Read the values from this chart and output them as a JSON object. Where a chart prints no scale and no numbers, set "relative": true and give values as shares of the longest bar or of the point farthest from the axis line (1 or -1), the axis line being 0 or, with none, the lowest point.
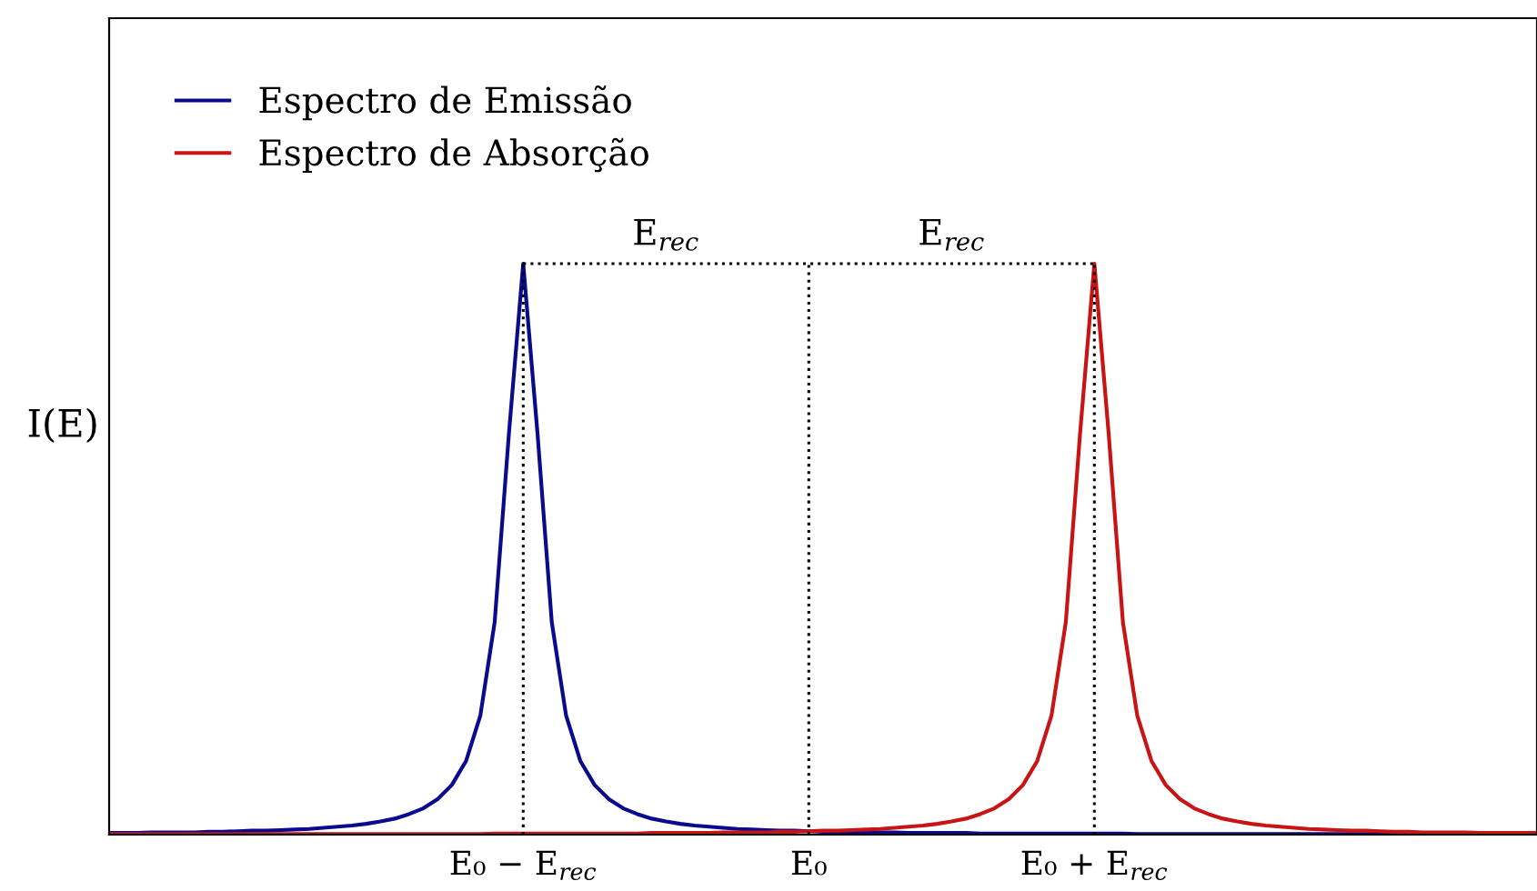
{
  "chart_data": {
    "type": "line",
    "relative": true,
    "ylabel": "I(E)",
    "categories": [
      null,
      null,
      null,
      null,
      null,
      null,
      null,
      null,
      null,
      null,
      null,
      null,
      null,
      null,
      null,
      null,
      null,
      null,
      null,
      null,
      null,
      null,
      null,
      null,
      null,
      null,
      null,
      null,
      null,
      "E₀ − E$_{rec}$",
      null,
      null,
      null,
      null,
      null,
      null,
      null,
      null,
      null,
      null,
      null,
      null,
      null,
      null,
      null,
      null,
      null,
      null,
      null,
      "E₀",
      null,
      null,
      null,
      null,
      null,
      null,
      null,
      null,
      null,
      null,
      null,
      null,
      null,
      null,
      null,
      null,
      null,
      null,
      null,
      "E₀ + E$_{rec}$",
      null,
      null,
      null,
      null,
      null,
      null,
      null,
      null,
      null,
      null,
      null,
      null,
      null,
      null,
      null,
      null,
      null,
      null,
      null,
      null,
      null,
      null,
      null,
      null,
      null,
      null,
      null,
      null,
      null,
      null,
      null
    ],
    "series": [
      {
        "name": "Espectro de Emissão",
        "color": "#0a0a8c",
        "values": [
          0.003,
          0.003,
          0.003,
          0.004,
          0.004,
          0.004,
          0.004,
          0.005,
          0.005,
          0.006,
          0.007,
          0.007,
          0.008,
          0.009,
          0.01,
          0.012,
          0.014,
          0.016,
          0.019,
          0.023,
          0.028,
          0.036,
          0.046,
          0.062,
          0.087,
          0.129,
          0.209,
          0.372,
          0.703,
          1,
          0.703,
          0.372,
          0.209,
          0.129,
          0.087,
          0.062,
          0.046,
          0.036,
          0.028,
          0.023,
          0.019,
          0.016,
          0.014,
          0.012,
          0.01,
          0.009,
          0.008,
          0.007,
          0.007,
          0.006,
          0.005,
          0.005,
          0.004,
          0.004,
          0.004,
          0.004,
          0.003,
          0.003,
          0.003,
          0.003,
          0.003,
          0.002,
          0.002,
          0.002,
          0.002,
          0.002,
          0.002,
          0.002,
          0.002,
          0.002,
          0.002,
          0.002,
          0.001,
          0.001,
          0.001,
          0.001,
          0.001,
          0.001,
          0.001,
          0.001,
          0.001,
          0.001,
          0.001,
          0.001,
          0.001,
          0.001,
          0.001,
          0.001,
          0.001,
          0.001,
          0.001,
          null,
          null,
          null,
          null,
          null,
          null,
          null,
          null,
          null,
          null
        ]
      },
      {
        "name": "Espectro de Absorção",
        "color": "#c81414",
        "values": [
          0.001,
          0.001,
          0.001,
          0.001,
          0.001,
          0.001,
          0.001,
          0.001,
          0.001,
          0.001,
          0.001,
          0.001,
          0.001,
          0.001,
          0.001,
          0.001,
          0.001,
          0.001,
          0.001,
          0.001,
          0.001,
          0.001,
          0.001,
          0.001,
          0.001,
          0.001,
          0.001,
          0.002,
          0.002,
          0.002,
          0.002,
          0.002,
          0.002,
          0.002,
          0.002,
          0.002,
          0.002,
          0.002,
          0.003,
          0.003,
          0.003,
          0.003,
          0.003,
          0.004,
          0.004,
          0.004,
          0.004,
          0.005,
          0.005,
          0.006,
          0.007,
          0.007,
          0.008,
          0.009,
          0.01,
          0.012,
          0.014,
          0.016,
          0.019,
          0.023,
          0.028,
          0.036,
          0.046,
          0.062,
          0.087,
          0.129,
          0.209,
          0.372,
          0.703,
          1,
          0.703,
          0.372,
          0.209,
          0.129,
          0.087,
          0.062,
          0.046,
          0.036,
          0.028,
          0.023,
          0.019,
          0.016,
          0.014,
          0.012,
          0.01,
          0.009,
          0.008,
          0.007,
          0.007,
          0.006,
          0.005,
          0.005,
          0.004,
          0.004,
          0.004,
          0.004,
          0.003,
          0.003,
          0.003,
          0.003,
          0.003
        ]
      }
    ],
    "ref_lines": [
      {
        "axis": "x",
        "value": "E₀ − E$_{rec}$",
        "line_style": "dotted"
      },
      {
        "axis": "x",
        "value": "E₀",
        "line_style": "dotted"
      },
      {
        "axis": "x",
        "value": "E₀ + E$_{rec}$",
        "line_style": "dotted"
      },
      {
        "axis": "y",
        "value": 1,
        "line_style": "dotted"
      }
    ],
    "annotations": [
      {
        "text": "E$_{rec}$",
        "y": 1
      },
      {
        "text": "E$_{rec}$",
        "y": 1
      }
    ],
    "legend": "top left",
    "grid": false,
    "marker": "none",
    "line_style": "solid"
  }
}
